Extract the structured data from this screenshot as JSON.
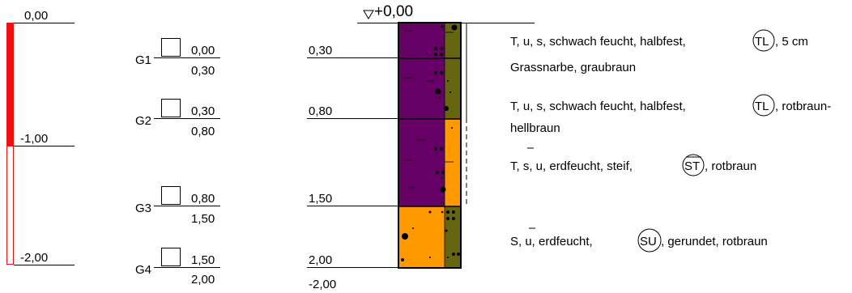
{
  "scale": {
    "labels": [
      "0,00",
      "-1,00",
      "-2,00"
    ],
    "bar_color_filled": "#ee1111",
    "bar_color_outline": "#ee1111"
  },
  "top_marker": {
    "label": "+0,00"
  },
  "samples": [
    {
      "name": "G1",
      "top": "0,00",
      "bottom": "0,30"
    },
    {
      "name": "G2",
      "top": "0,30",
      "bottom": "0,80"
    },
    {
      "name": "G3",
      "top": "0,80",
      "bottom": "1,50"
    },
    {
      "name": "G4",
      "top": "1,50",
      "bottom": "2,00"
    }
  ],
  "depths": [
    "0,30",
    "0,80",
    "1,50",
    "2,00"
  ],
  "bottom_depth": "-2,00",
  "layers": [
    {
      "color": "#660066",
      "secondary": "#666611"
    },
    {
      "color": "#660066",
      "secondary": "#ff9900"
    },
    {
      "color": "#660066",
      "secondary": "#ff9900"
    },
    {
      "color": "#ff9900",
      "secondary": "#666611"
    }
  ],
  "descriptions": [
    {
      "line1_pre": "T, u, s, schwach feucht, halbfest,",
      "symbol": "TL",
      "line1_post": ", 5 cm",
      "line2": "Grassnarbe, graubraun"
    },
    {
      "line1_pre": "T, u, s, schwach feucht, halbfest,",
      "symbol": "TL",
      "line1_post": ", rotbraun-",
      "line2": "hellbraun"
    },
    {
      "line1_pre": "T, s, u, erdfeucht, steif,",
      "symbol": "ST",
      "line1_post": ", rotbraun",
      "line2": ""
    },
    {
      "line1_pre": "S, u, erdfeucht,",
      "symbol": "SU",
      "line1_post": ", gerundet, rotbraun",
      "line2": ""
    }
  ]
}
